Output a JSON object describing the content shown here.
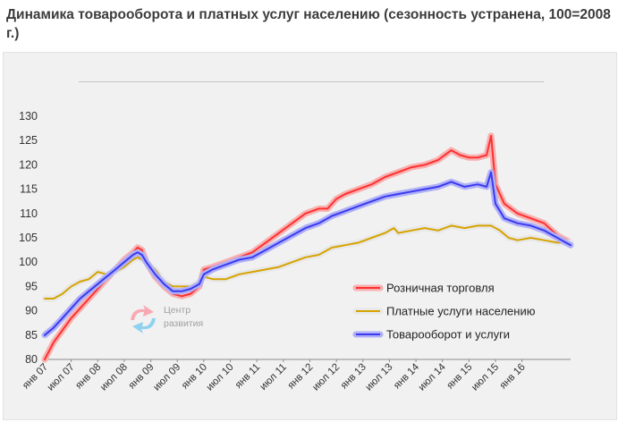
{
  "title": "Динамика товарооборота и платных услуг населению (сезонность устранена, 100=2008 г.)",
  "watermark": {
    "line1": "Центр",
    "line2": "развития"
  },
  "chart_data": {
    "type": "line",
    "ylim": [
      80,
      130
    ],
    "yticks": [
      80,
      85,
      90,
      95,
      100,
      105,
      110,
      115,
      120,
      125,
      130
    ],
    "xlabels": [
      "янв 07",
      "июл 07",
      "янв 08",
      "июл 08",
      "янв 09",
      "июл 09",
      "янв 10",
      "июл 10",
      "янв 11",
      "июл 11",
      "янв 12",
      "июл 12",
      "янв 13",
      "июл 13",
      "янв 14",
      "июл 14",
      "янв 15",
      "июл 15",
      "янв 16"
    ],
    "x_start": "2007-01",
    "x_end": "2016-12",
    "legend_position": "center-right",
    "series": [
      {
        "name": "Розничная торговля",
        "color": "#ff3030",
        "halo": "#f8b0b0",
        "points": [
          [
            "2007-01",
            80
          ],
          [
            "2007-03",
            83.5
          ],
          [
            "2007-05",
            86
          ],
          [
            "2007-07",
            88.5
          ],
          [
            "2007-09",
            90.5
          ],
          [
            "2007-11",
            92.5
          ],
          [
            "2008-01",
            94.5
          ],
          [
            "2008-03",
            96.5
          ],
          [
            "2008-05",
            98.5
          ],
          [
            "2008-07",
            100.5
          ],
          [
            "2008-09",
            102
          ],
          [
            "2008-10",
            103
          ],
          [
            "2008-11",
            102.5
          ],
          [
            "2008-12",
            100
          ],
          [
            "2009-02",
            97
          ],
          [
            "2009-04",
            95
          ],
          [
            "2009-06",
            93.5
          ],
          [
            "2009-08",
            93
          ],
          [
            "2009-10",
            93.5
          ],
          [
            "2009-12",
            95
          ],
          [
            "2010-01",
            98.5
          ],
          [
            "2010-03",
            99
          ],
          [
            "2010-06",
            100
          ],
          [
            "2010-09",
            101
          ],
          [
            "2010-12",
            102
          ],
          [
            "2011-03",
            104
          ],
          [
            "2011-06",
            106
          ],
          [
            "2011-09",
            108
          ],
          [
            "2011-12",
            110
          ],
          [
            "2012-03",
            111
          ],
          [
            "2012-05",
            111
          ],
          [
            "2012-07",
            113
          ],
          [
            "2012-09",
            114
          ],
          [
            "2012-12",
            115
          ],
          [
            "2013-03",
            116
          ],
          [
            "2013-06",
            117.5
          ],
          [
            "2013-09",
            118.5
          ],
          [
            "2013-12",
            119.5
          ],
          [
            "2014-03",
            120
          ],
          [
            "2014-06",
            121
          ],
          [
            "2014-09",
            123
          ],
          [
            "2014-11",
            122
          ],
          [
            "2015-01",
            121.5
          ],
          [
            "2015-03",
            121.5
          ],
          [
            "2015-05",
            122
          ],
          [
            "2015-06",
            126
          ],
          [
            "2015-07",
            116
          ],
          [
            "2015-09",
            112
          ],
          [
            "2015-12",
            110
          ],
          [
            "2016-03",
            109
          ],
          [
            "2016-06",
            108
          ],
          [
            "2016-09",
            105.5
          ],
          [
            "2016-12",
            104
          ]
        ]
      },
      {
        "name": "Платные услуги населению",
        "color": "#d6a300",
        "halo": "#e8e8e8",
        "points": [
          [
            "2007-01",
            92.5
          ],
          [
            "2007-03",
            92.5
          ],
          [
            "2007-05",
            93.5
          ],
          [
            "2007-07",
            95
          ],
          [
            "2007-09",
            96
          ],
          [
            "2007-11",
            96.5
          ],
          [
            "2008-01",
            98
          ],
          [
            "2008-03",
            97.5
          ],
          [
            "2008-05",
            98
          ],
          [
            "2008-07",
            99
          ],
          [
            "2008-09",
            100.5
          ],
          [
            "2008-10",
            101
          ],
          [
            "2008-11",
            100.5
          ],
          [
            "2008-12",
            100
          ],
          [
            "2009-02",
            98.5
          ],
          [
            "2009-04",
            96
          ],
          [
            "2009-06",
            95
          ],
          [
            "2009-08",
            95
          ],
          [
            "2009-10",
            95
          ],
          [
            "2009-12",
            96
          ],
          [
            "2010-01",
            97
          ],
          [
            "2010-03",
            96.5
          ],
          [
            "2010-06",
            96.5
          ],
          [
            "2010-09",
            97.5
          ],
          [
            "2010-12",
            98
          ],
          [
            "2011-03",
            98.5
          ],
          [
            "2011-06",
            99
          ],
          [
            "2011-09",
            100
          ],
          [
            "2011-12",
            101
          ],
          [
            "2012-03",
            101.5
          ],
          [
            "2012-06",
            103
          ],
          [
            "2012-09",
            103.5
          ],
          [
            "2012-12",
            104
          ],
          [
            "2013-03",
            105
          ],
          [
            "2013-06",
            106
          ],
          [
            "2013-08",
            107
          ],
          [
            "2013-09",
            106
          ],
          [
            "2013-12",
            106.5
          ],
          [
            "2014-03",
            107
          ],
          [
            "2014-06",
            106.5
          ],
          [
            "2014-09",
            107.5
          ],
          [
            "2014-12",
            107
          ],
          [
            "2015-03",
            107.5
          ],
          [
            "2015-06",
            107.5
          ],
          [
            "2015-08",
            106.5
          ],
          [
            "2015-10",
            105
          ],
          [
            "2015-12",
            104.5
          ],
          [
            "2016-03",
            105
          ],
          [
            "2016-06",
            104.5
          ],
          [
            "2016-09",
            104
          ],
          [
            "2016-12",
            104
          ]
        ]
      },
      {
        "name": "Товарооборот и услуги",
        "color": "#3a3af0",
        "halo": "#b0b0f8",
        "points": [
          [
            "2007-01",
            85
          ],
          [
            "2007-03",
            86.5
          ],
          [
            "2007-05",
            88.5
          ],
          [
            "2007-07",
            90.5
          ],
          [
            "2007-09",
            92.5
          ],
          [
            "2007-11",
            94
          ],
          [
            "2008-01",
            95.5
          ],
          [
            "2008-03",
            97
          ],
          [
            "2008-05",
            98.5
          ],
          [
            "2008-07",
            100
          ],
          [
            "2008-09",
            101.5
          ],
          [
            "2008-10",
            102
          ],
          [
            "2008-11",
            101.5
          ],
          [
            "2008-12",
            100
          ],
          [
            "2009-02",
            97.5
          ],
          [
            "2009-04",
            95.5
          ],
          [
            "2009-06",
            94
          ],
          [
            "2009-08",
            94
          ],
          [
            "2009-10",
            94.5
          ],
          [
            "2009-12",
            95.5
          ],
          [
            "2010-01",
            97.5
          ],
          [
            "2010-03",
            98.5
          ],
          [
            "2010-06",
            99.5
          ],
          [
            "2010-09",
            100.5
          ],
          [
            "2010-12",
            101
          ],
          [
            "2011-03",
            102.5
          ],
          [
            "2011-06",
            104
          ],
          [
            "2011-09",
            105.5
          ],
          [
            "2011-12",
            107
          ],
          [
            "2012-03",
            108
          ],
          [
            "2012-06",
            109.5
          ],
          [
            "2012-09",
            110.5
          ],
          [
            "2012-12",
            111.5
          ],
          [
            "2013-03",
            112.5
          ],
          [
            "2013-06",
            113.5
          ],
          [
            "2013-09",
            114
          ],
          [
            "2013-12",
            114.5
          ],
          [
            "2014-03",
            115
          ],
          [
            "2014-06",
            115.5
          ],
          [
            "2014-09",
            116.5
          ],
          [
            "2014-12",
            115.5
          ],
          [
            "2015-03",
            116
          ],
          [
            "2015-05",
            115.5
          ],
          [
            "2015-06",
            118.5
          ],
          [
            "2015-07",
            112
          ],
          [
            "2015-09",
            109
          ],
          [
            "2015-12",
            108
          ],
          [
            "2016-03",
            107.5
          ],
          [
            "2016-06",
            106.5
          ],
          [
            "2016-09",
            105
          ],
          [
            "2016-12",
            103.5
          ]
        ]
      }
    ]
  }
}
